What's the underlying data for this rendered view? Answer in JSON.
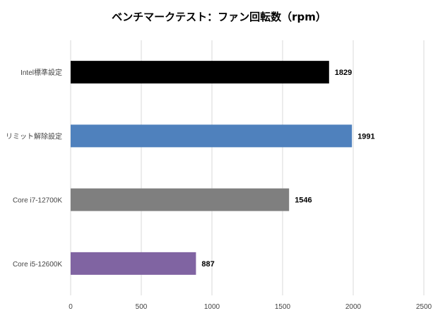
{
  "chart_data": {
    "type": "bar",
    "orientation": "horizontal",
    "title": "ベンチマークテスト：ファン回転数（rpm）",
    "categories": [
      "Intel標準設定",
      "リミット解除設定",
      "Core i7-12700K",
      "Core i5-12600K"
    ],
    "values": [
      1829,
      1991,
      1546,
      887
    ],
    "colors": [
      "#000000",
      "#4f81bd",
      "#7f7f7f",
      "#8064a2"
    ],
    "xlim": [
      0,
      2500
    ],
    "xticks": [
      0,
      500,
      1000,
      1500,
      2000,
      2500
    ],
    "grid": true,
    "data_labels": true,
    "legend": "none"
  }
}
